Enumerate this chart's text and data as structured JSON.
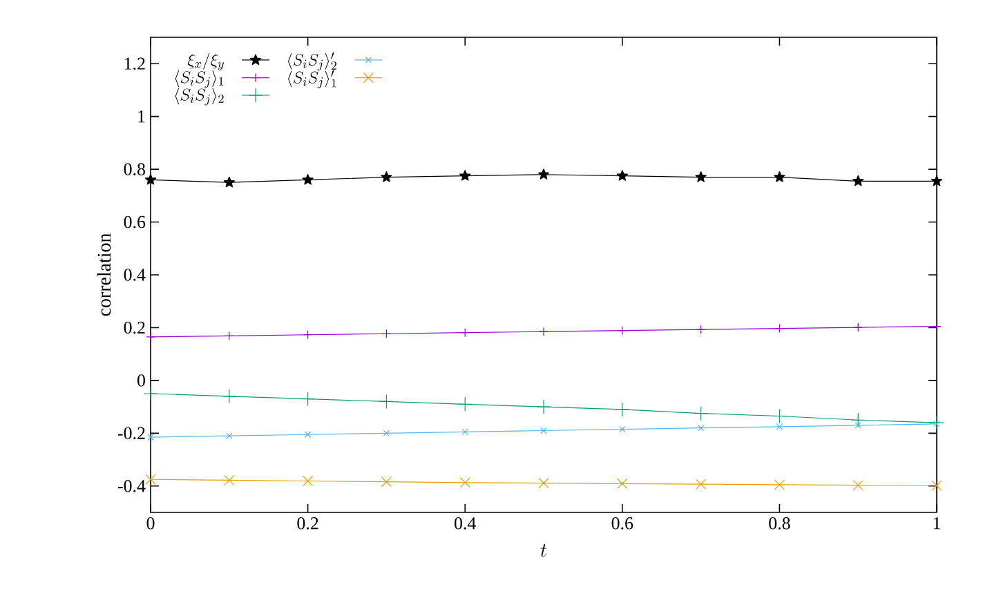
{
  "chart_data": {
    "type": "line",
    "xlabel": "t",
    "ylabel": "correlation",
    "x": [
      0,
      0.1,
      0.2,
      0.3,
      0.4,
      0.5,
      0.6,
      0.7,
      0.8,
      0.9,
      1.0
    ],
    "series": [
      {
        "name": "\\xi_x/\\xi_y",
        "color": "#000000",
        "marker": "star",
        "values": [
          0.76,
          0.75,
          0.76,
          0.77,
          0.775,
          0.78,
          0.775,
          0.77,
          0.77,
          0.755,
          0.755
        ]
      },
      {
        "name": "\\langle S_iS_j\\rangle_1",
        "color": "#9400d3",
        "marker": "plus",
        "values": [
          0.165,
          0.169,
          0.173,
          0.177,
          0.181,
          0.185,
          0.189,
          0.193,
          0.197,
          0.201,
          0.205
        ]
      },
      {
        "name": "\\langle S_iS_j\\rangle_2",
        "color": "#009e73",
        "marker": "plus",
        "values": [
          -0.05,
          -0.06,
          -0.07,
          -0.08,
          -0.09,
          -0.1,
          -0.11,
          -0.125,
          -0.135,
          -0.15,
          -0.16
        ]
      },
      {
        "name": "\\langle S_iS_j\\rangle_2'",
        "color": "#56b4e9",
        "marker": "cross",
        "values": [
          -0.215,
          -0.21,
          -0.205,
          -0.2,
          -0.195,
          -0.19,
          -0.185,
          -0.18,
          -0.175,
          -0.17,
          -0.165
        ]
      },
      {
        "name": "\\langle S_iS_j\\rangle_1'",
        "color": "#e69f00",
        "marker": "cross",
        "values": [
          -0.375,
          -0.378,
          -0.381,
          -0.384,
          -0.387,
          -0.389,
          -0.391,
          -0.393,
          -0.395,
          -0.397,
          -0.398
        ]
      }
    ],
    "xlim": [
      0,
      1
    ],
    "ylim": [
      -0.5,
      1.3
    ],
    "xticks": [
      0,
      0.2,
      0.4,
      0.6,
      0.8,
      1
    ],
    "yticks": [
      -0.4,
      -0.2,
      0,
      0.2,
      0.4,
      0.6,
      0.8,
      1,
      1.2
    ],
    "legend": "top left",
    "grid": false,
    "line_style": "solid"
  }
}
